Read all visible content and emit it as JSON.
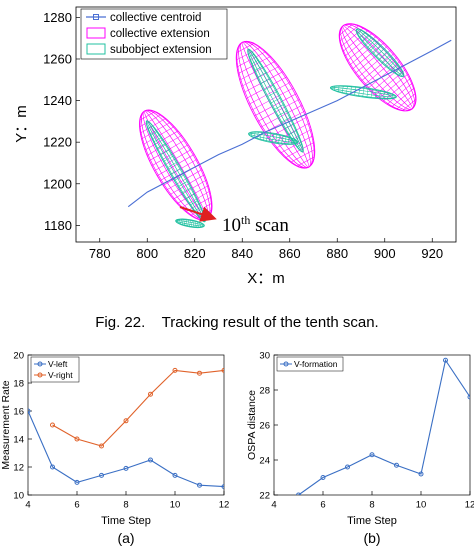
{
  "figure": {
    "caption": "Fig. 22.    Tracking result of the tenth scan.",
    "annotation": "10",
    "annotation_sup": "th",
    "annotation_rest": " scan",
    "panel_a_label": "(a)",
    "panel_b_label": "(b)"
  },
  "colors": {
    "centroid": "#4a6fd4",
    "collective": "#ff00ff",
    "subobject": "#20c0a0",
    "arrow": "#e02020",
    "v_left": "#3a6fc4",
    "v_right": "#e0622a",
    "v_formation": "#3a6fc4"
  },
  "chart_data": [
    {
      "type": "scatter",
      "xlabel": "X：m",
      "ylabel": "Y：m",
      "xlim": [
        770,
        930
      ],
      "ylim": [
        1172,
        1285
      ],
      "xticks": [
        780,
        800,
        820,
        840,
        860,
        880,
        900,
        920
      ],
      "yticks": [
        1180,
        1200,
        1220,
        1240,
        1260,
        1280
      ],
      "legend_position": "top-left",
      "legend": [
        "collective centroid",
        "collective extension",
        "subobject extension"
      ],
      "centroid_track": {
        "x": [
          792,
          800,
          810,
          820,
          830,
          840,
          850,
          860,
          870,
          880,
          890,
          900,
          910,
          920,
          928
        ],
        "y": [
          1189,
          1196,
          1202,
          1208,
          1214,
          1219,
          1225,
          1230,
          1235,
          1240,
          1246,
          1252,
          1258,
          1264,
          1269
        ]
      },
      "collective_ellipses": [
        {
          "cx": 812,
          "cy": 1209,
          "rx": 9,
          "ry": 30,
          "angle": 30
        },
        {
          "cx": 854,
          "cy": 1238,
          "rx": 10,
          "ry": 34,
          "angle": 28
        },
        {
          "cx": 897,
          "cy": 1256,
          "rx": 9,
          "ry": 26,
          "angle": 40
        }
      ],
      "subobject_ellipses": [
        {
          "cx": 812,
          "cy": 1206,
          "rx": 2.5,
          "ry": 28,
          "angle": 30
        },
        {
          "cx": 818,
          "cy": 1181,
          "rx": 1.5,
          "ry": 7,
          "angle": 80
        },
        {
          "cx": 854,
          "cy": 1240,
          "rx": 2.5,
          "ry": 28,
          "angle": 28
        },
        {
          "cx": 853,
          "cy": 1222,
          "rx": 2,
          "ry": 12,
          "angle": 80
        },
        {
          "cx": 898,
          "cy": 1263,
          "rx": 2.5,
          "ry": 16,
          "angle": 45
        },
        {
          "cx": 891,
          "cy": 1244,
          "rx": 2,
          "ry": 16,
          "angle": 82
        }
      ]
    },
    {
      "type": "line",
      "xlabel": "Time Step",
      "ylabel": "Measurement Rate",
      "xlim": [
        4,
        12
      ],
      "ylim": [
        10,
        20
      ],
      "xticks": [
        4,
        6,
        8,
        10,
        12
      ],
      "yticks": [
        10,
        12,
        14,
        16,
        18,
        20
      ],
      "legend_position": "top-left",
      "series": [
        {
          "name": "V-left",
          "x": [
            4,
            5,
            6,
            7,
            8,
            9,
            10,
            11,
            12
          ],
          "values": [
            16.0,
            12.0,
            10.9,
            11.4,
            11.9,
            12.5,
            11.4,
            10.7,
            10.6
          ]
        },
        {
          "name": "V-right",
          "x": [
            5,
            6,
            7,
            8,
            9,
            10,
            11,
            12
          ],
          "values": [
            15.0,
            14.0,
            13.5,
            15.3,
            17.2,
            18.9,
            18.7,
            18.9
          ]
        }
      ]
    },
    {
      "type": "line",
      "xlabel": "Time Step",
      "ylabel": "OSPA distance",
      "xlim": [
        4,
        12
      ],
      "ylim": [
        22,
        30
      ],
      "xticks": [
        4,
        6,
        8,
        10,
        12
      ],
      "yticks": [
        22,
        24,
        26,
        28,
        30
      ],
      "legend_position": "top-left",
      "series": [
        {
          "name": "V-formation",
          "x": [
            5,
            6,
            7,
            8,
            9,
            10,
            11,
            12
          ],
          "values": [
            22.0,
            23.0,
            23.6,
            24.3,
            23.7,
            23.2,
            29.7,
            27.6
          ]
        }
      ]
    }
  ]
}
